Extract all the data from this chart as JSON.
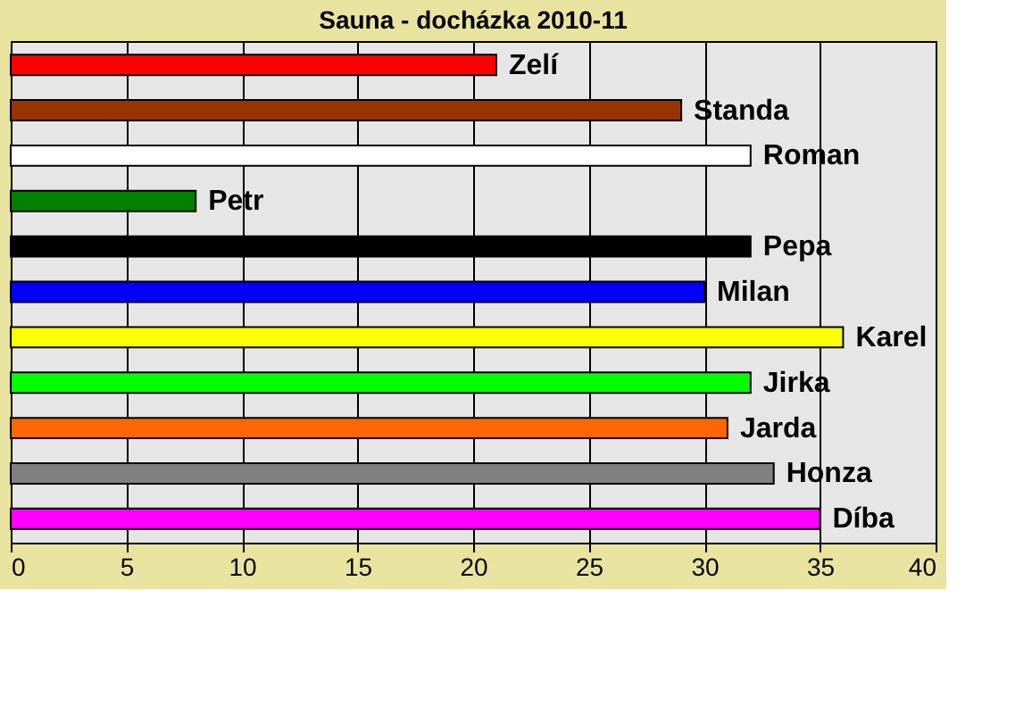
{
  "chart_data": {
    "type": "bar",
    "orientation": "horizontal",
    "title": "Sauna - docházka 2010-11",
    "categories": [
      "Zelí",
      "Standa",
      "Roman",
      "Petr",
      "Pepa",
      "Milan",
      "Karel",
      "Jirka",
      "Jarda",
      "Honza",
      "Díba"
    ],
    "values": [
      21,
      29,
      32,
      8,
      32,
      30,
      36,
      32,
      31,
      33,
      35
    ],
    "colors": [
      "#ff0000",
      "#993300",
      "#ffffff",
      "#008000",
      "#000000",
      "#0000ff",
      "#ffff00",
      "#00ff00",
      "#ff6600",
      "#808080",
      "#ff00ff"
    ],
    "xlim": [
      0,
      40
    ],
    "xticks": [
      0,
      5,
      10,
      15,
      20,
      25,
      30,
      35,
      40
    ],
    "grid": "x",
    "tick_labels": "x"
  }
}
